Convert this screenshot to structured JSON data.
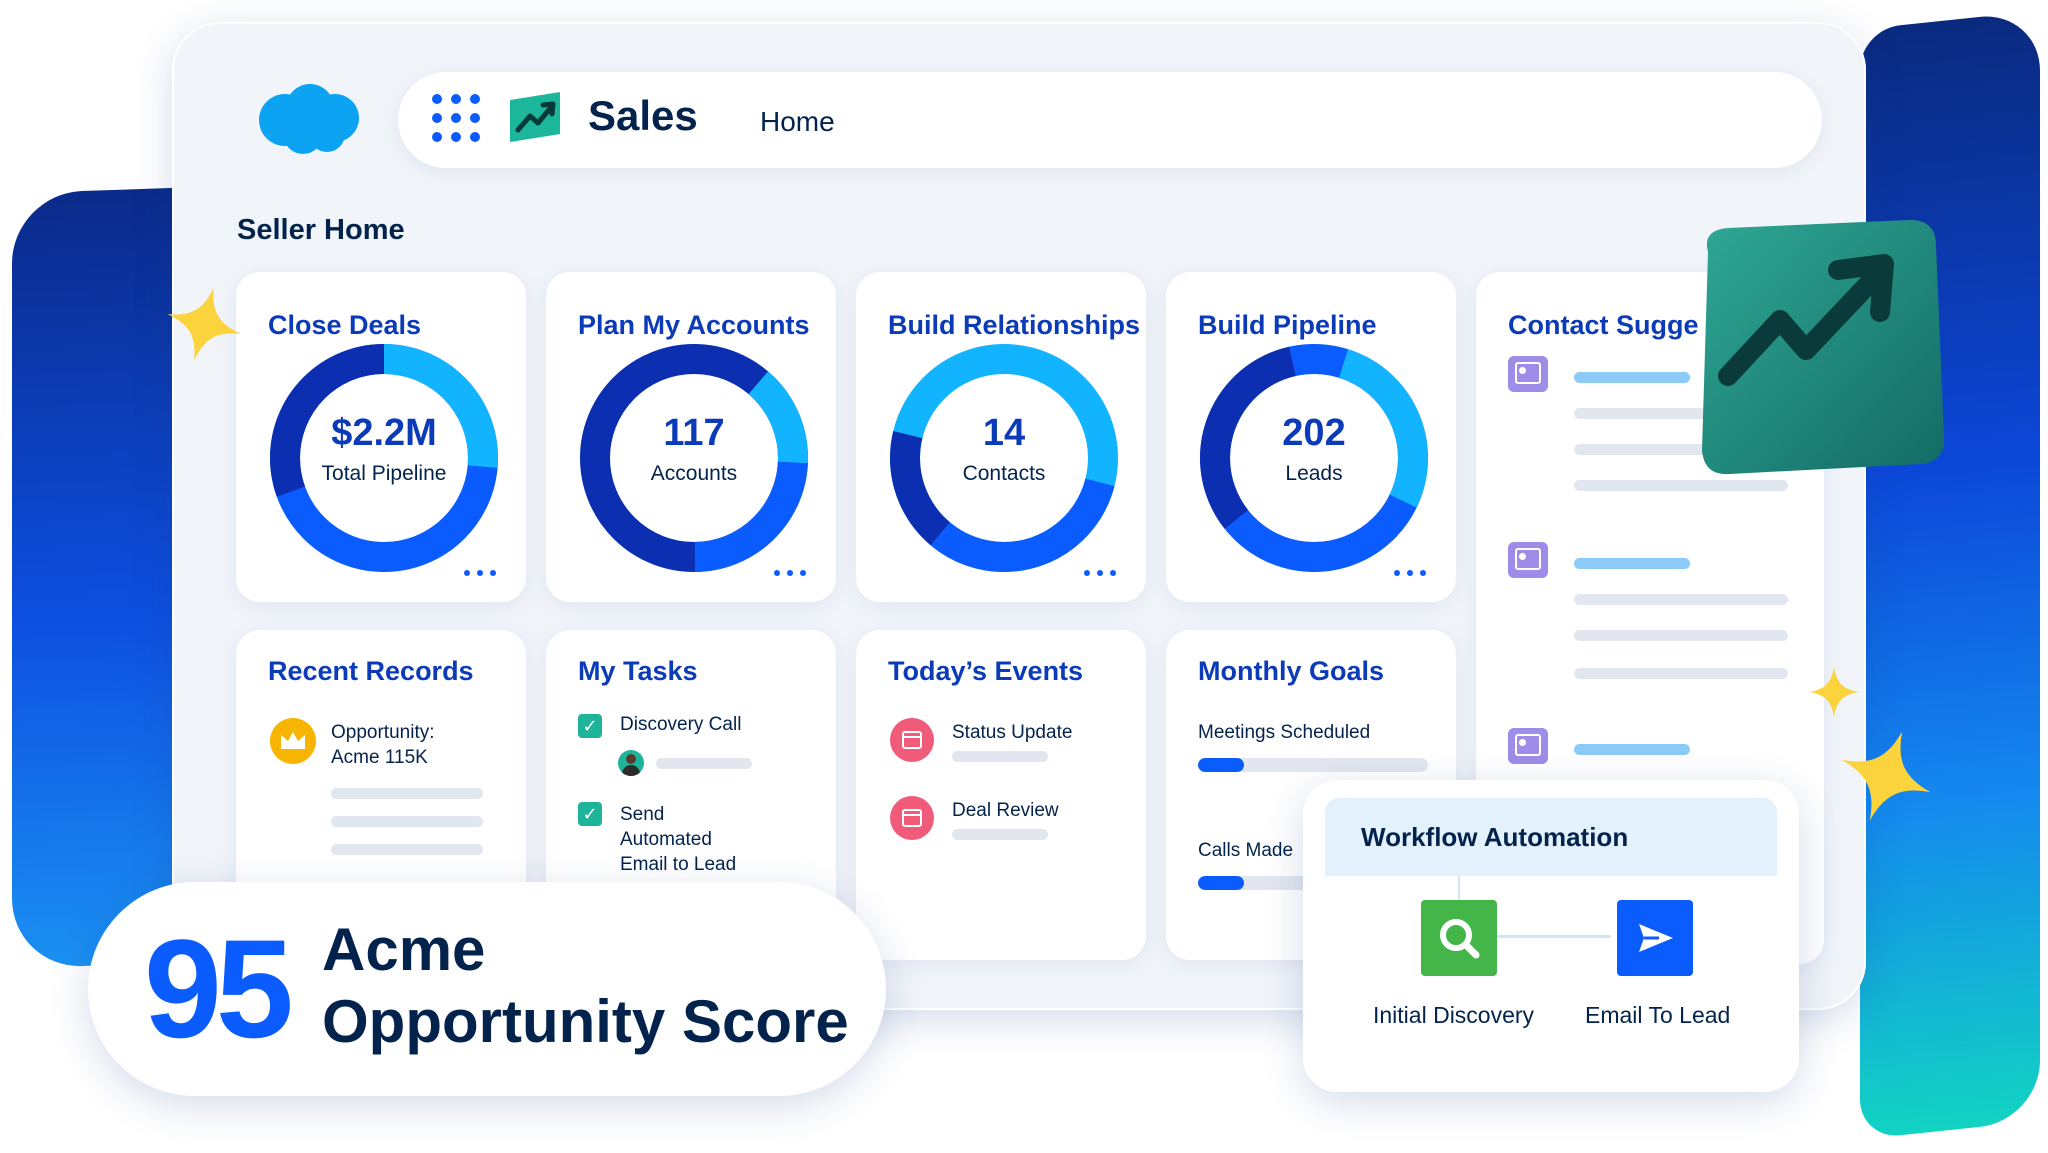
{
  "header": {
    "app_title": "Sales",
    "nav_item": "Home"
  },
  "page": {
    "title": "Seller Home"
  },
  "stat_cards": [
    {
      "title": "Close Deals",
      "value": "$2.2M",
      "label": "Total Pipeline"
    },
    {
      "title": "Plan My Accounts",
      "value": "117",
      "label": "Accounts"
    },
    {
      "title": "Build Relationships",
      "value": "14",
      "label": "Contacts"
    },
    {
      "title": "Build Pipeline",
      "value": "202",
      "label": "Leads"
    }
  ],
  "contact_suggestions": {
    "title": "Contact Sugge"
  },
  "recent_records": {
    "title": "Recent Records",
    "item_line1": "Opportunity:",
    "item_line2": "Acme 115K"
  },
  "my_tasks": {
    "title": "My Tasks",
    "items": [
      {
        "line1": "Discovery Call",
        "line2": "",
        "line3": ""
      },
      {
        "line1": "Send",
        "line2": "Automated",
        "line3": "Email to Lead"
      }
    ]
  },
  "todays_events": {
    "title": "Today’s Events",
    "items": [
      {
        "label": "Status Update"
      },
      {
        "label": "Deal Review"
      }
    ]
  },
  "monthly_goals": {
    "title": "Monthly Goals",
    "goals": [
      {
        "label": "Meetings Scheduled",
        "progress": 0.2
      },
      {
        "label": "Calls Made",
        "progress": 0.2
      }
    ]
  },
  "workflow": {
    "title": "Workflow Automation",
    "steps": [
      {
        "label": "Initial Discovery",
        "icon": "search-icon",
        "color": "#44b649"
      },
      {
        "label": "Email To Lead",
        "icon": "send-icon",
        "color": "#0b5cff"
      }
    ]
  },
  "score": {
    "value": "95",
    "line1": "Acme",
    "line2": "Opportunity Score"
  },
  "colors": {
    "brand_blue": "#0b5cff",
    "navy": "#03234d",
    "title_blue": "#0b3bb8",
    "donut_dark": "#0b2fb0",
    "donut_mid": "#0b5cff",
    "donut_light": "#13b4ff"
  }
}
